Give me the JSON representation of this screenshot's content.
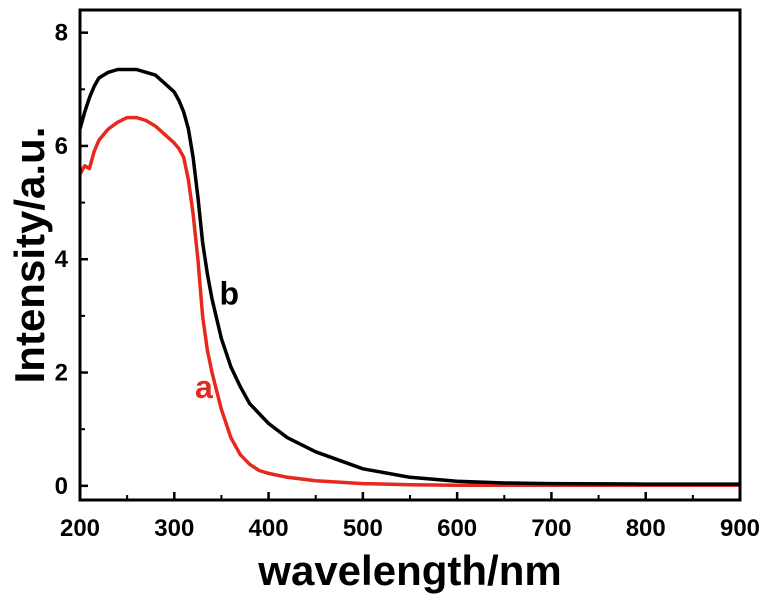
{
  "chart_data": {
    "type": "line",
    "title": "",
    "xlabel": "wavelength/nm",
    "ylabel": "Intensity/a.u.",
    "xlim": [
      200,
      900
    ],
    "ylim": [
      -0.25,
      8.4
    ],
    "xticks": [
      "200",
      "300",
      "400",
      "500",
      "600",
      "700",
      "800",
      "900"
    ],
    "yticks": [
      "0",
      "2",
      "4",
      "6",
      "8"
    ],
    "grid": false,
    "legend": "none",
    "series": [
      {
        "name": "a",
        "color": "#e8281e",
        "x": [
          200,
          205,
          210,
          215,
          220,
          230,
          240,
          250,
          260,
          270,
          280,
          290,
          300,
          305,
          310,
          315,
          320,
          325,
          330,
          335,
          340,
          350,
          360,
          370,
          380,
          390,
          400,
          420,
          450,
          500,
          550,
          600,
          700,
          800,
          900
        ],
        "y": [
          5.5,
          5.65,
          5.6,
          5.9,
          6.1,
          6.3,
          6.42,
          6.5,
          6.5,
          6.45,
          6.35,
          6.2,
          6.05,
          5.95,
          5.8,
          5.4,
          4.8,
          4.0,
          3.0,
          2.4,
          2.0,
          1.35,
          0.85,
          0.55,
          0.38,
          0.27,
          0.22,
          0.15,
          0.09,
          0.04,
          0.02,
          0.01,
          0.01,
          0.01,
          0.01
        ]
      },
      {
        "name": "b",
        "color": "#000000",
        "x": [
          200,
          205,
          210,
          215,
          220,
          230,
          240,
          250,
          260,
          270,
          280,
          290,
          300,
          305,
          310,
          315,
          320,
          325,
          330,
          335,
          340,
          350,
          360,
          370,
          380,
          400,
          420,
          450,
          500,
          550,
          600,
          650,
          700,
          800,
          900
        ],
        "y": [
          6.3,
          6.6,
          6.85,
          7.05,
          7.2,
          7.3,
          7.35,
          7.35,
          7.35,
          7.3,
          7.25,
          7.1,
          6.95,
          6.8,
          6.6,
          6.3,
          5.8,
          5.1,
          4.3,
          3.75,
          3.3,
          2.6,
          2.1,
          1.75,
          1.45,
          1.1,
          0.85,
          0.6,
          0.3,
          0.15,
          0.08,
          0.05,
          0.04,
          0.03,
          0.03
        ]
      }
    ],
    "series_labels": [
      "a",
      "b"
    ]
  }
}
